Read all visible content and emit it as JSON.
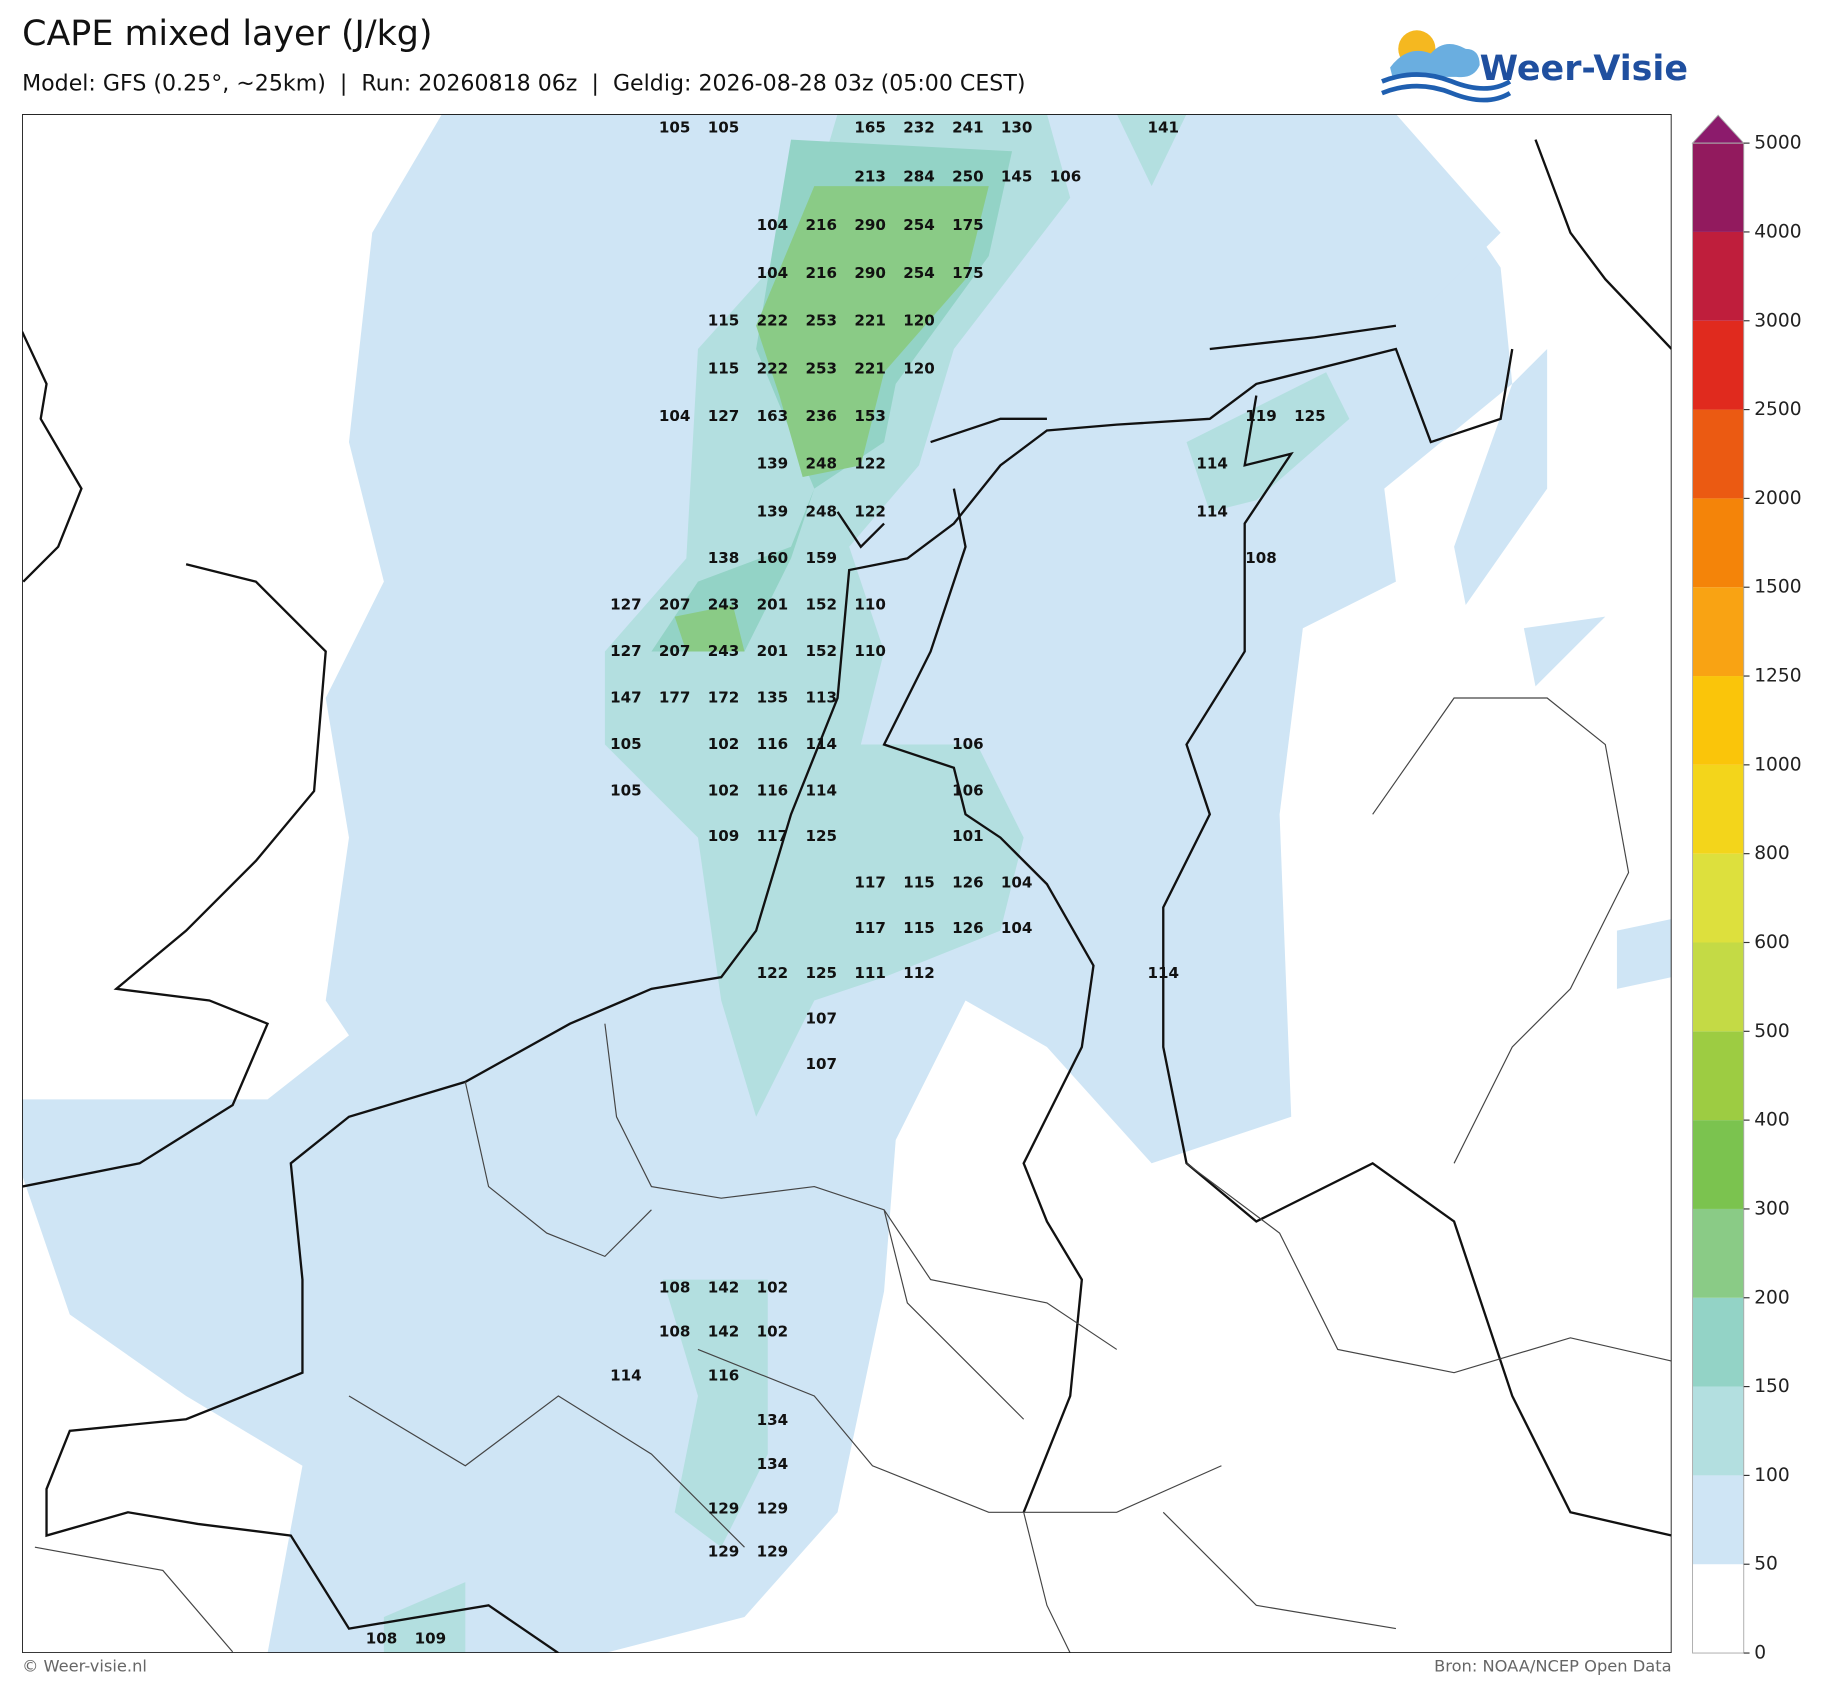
{
  "header": {
    "title": "CAPE mixed layer (J/kg)",
    "subtitle": "Model: GFS (0.25°, ~25km)  |  Run: 20260818 06z  |  Geldig: 2026-08-28 03z (05:00 CEST)",
    "logo": "Weer-Visie"
  },
  "footer": {
    "left": "© Weer-visie.nl",
    "right": "Bron: NOAA/NCEP Open Data"
  },
  "legend": {
    "ticks": [
      0,
      50,
      100,
      150,
      200,
      300,
      400,
      500,
      600,
      800,
      1000,
      1250,
      1500,
      2000,
      2500,
      3000,
      4000,
      5000
    ],
    "colors": [
      "#ffffff",
      "#cfe5f5",
      "#b3dfe0",
      "#93d3c6",
      "#8acb86",
      "#7bc34f",
      "#9dcc42",
      "#c4da45",
      "#dde03d",
      "#f3d51b",
      "#fac50a",
      "#f9a313",
      "#f48409",
      "#eb5a12",
      "#e02a1e",
      "#bf1e3c",
      "#921a5e",
      "#8c1b6c"
    ]
  },
  "map": {
    "labels": [
      [
        105,
        105,
        165,
        232,
        241,
        130,
        141
      ],
      [
        213,
        284,
        250,
        145,
        106
      ],
      [
        104,
        216,
        290,
        254,
        175
      ],
      [
        104,
        216,
        290,
        254,
        175
      ],
      [
        115,
        222,
        253,
        221,
        120
      ],
      [
        115,
        222,
        253,
        221,
        120
      ],
      [
        104,
        127,
        163,
        236,
        153,
        119,
        125
      ],
      [
        139,
        248,
        122,
        114
      ],
      [
        139,
        248,
        122,
        114
      ],
      [
        138,
        160,
        159,
        108
      ],
      [
        127,
        207,
        243,
        201,
        152,
        110
      ],
      [
        127,
        207,
        243,
        201,
        152,
        110
      ],
      [
        147,
        177,
        172,
        135,
        113
      ],
      [
        105,
        102,
        116,
        114,
        106
      ],
      [
        105,
        102,
        116,
        114,
        106
      ],
      [
        109,
        117,
        125,
        101
      ],
      [
        117,
        115,
        126,
        104
      ],
      [
        117,
        115,
        126,
        104
      ],
      [
        122,
        125,
        111,
        112,
        114
      ],
      [
        107
      ],
      [
        107
      ],
      [
        108,
        142,
        102
      ],
      [
        108,
        142,
        102
      ],
      [
        114,
        116
      ],
      [
        134
      ],
      [
        134
      ],
      [
        129,
        129
      ],
      [
        129,
        129
      ],
      [
        108,
        109
      ]
    ]
  }
}
